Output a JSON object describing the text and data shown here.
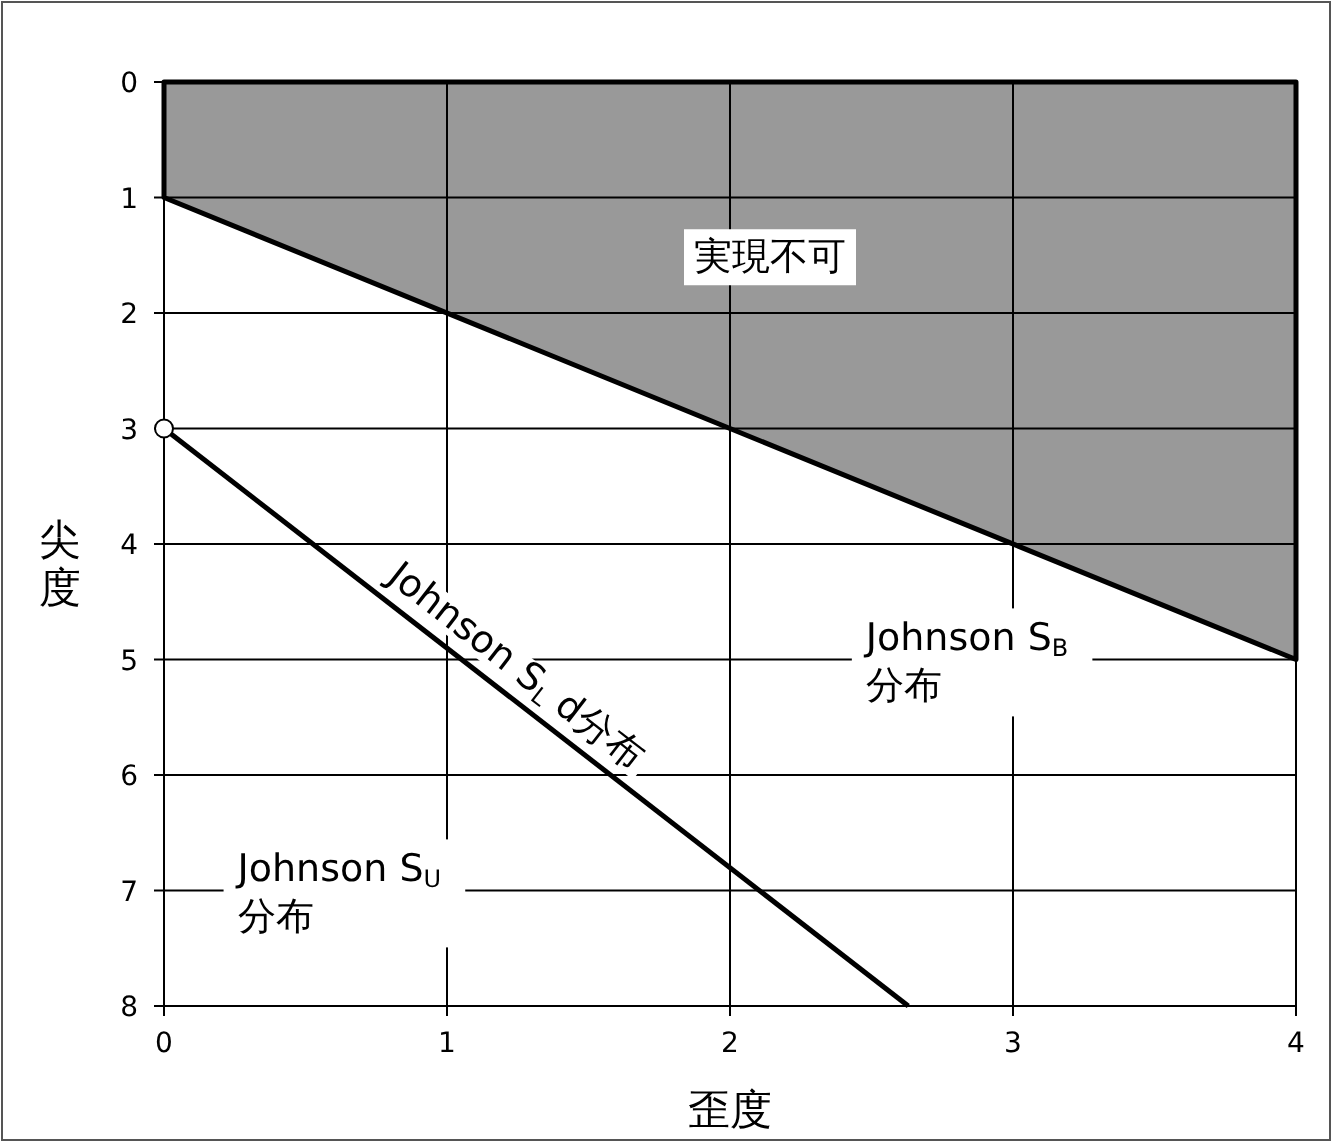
{
  "chart_data": {
    "type": "line",
    "xlabel": "歪度",
    "ylabel": "尖度",
    "xlim": [
      0,
      4
    ],
    "ylim": [
      8,
      0
    ],
    "xticks": [
      0,
      1,
      2,
      3,
      4
    ],
    "yticks": [
      0,
      1,
      2,
      3,
      4,
      5,
      6,
      7,
      8
    ],
    "grid": true,
    "legend": false,
    "series": [
      {
        "type": "area",
        "name": "実現不可",
        "color": "#999999",
        "x": [
          0,
          4
        ],
        "values": [
          1,
          5
        ]
      },
      {
        "name": "Johnson S$_{L}$ d分布",
        "color": "#000000",
        "x": [
          0,
          2.63
        ],
        "values": [
          3,
          8
        ]
      },
      {
        "type": "scatter",
        "marker": "circle",
        "color": "#ffffff",
        "x": [
          0
        ],
        "values": [
          3
        ]
      }
    ],
    "annotations": [
      "Johnson S$_{B}$ 分布",
      "Johnson S$_{U}$ 分布"
    ]
  }
}
